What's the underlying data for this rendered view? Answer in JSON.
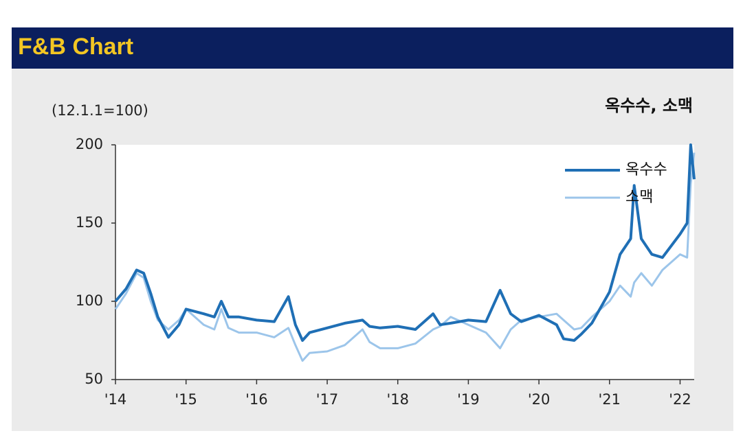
{
  "chart_data": {
    "type": "line",
    "title": "F&B Chart",
    "subtitle": "옥수수, 소맥",
    "ylabel": "(12.1.1=100)",
    "x": [
      2014.0,
      2014.15,
      2014.3,
      2014.4,
      2014.5,
      2014.6,
      2014.75,
      2014.9,
      2015.0,
      2015.25,
      2015.4,
      2015.5,
      2015.6,
      2015.75,
      2016.0,
      2016.25,
      2016.45,
      2016.55,
      2016.65,
      2016.75,
      2017.0,
      2017.25,
      2017.5,
      2017.6,
      2017.75,
      2018.0,
      2018.25,
      2018.5,
      2018.6,
      2018.75,
      2019.0,
      2019.25,
      2019.45,
      2019.6,
      2019.75,
      2020.0,
      2020.25,
      2020.35,
      2020.5,
      2020.6,
      2020.75,
      2021.0,
      2021.15,
      2021.3,
      2021.35,
      2021.45,
      2021.6,
      2021.75,
      2022.0,
      2022.1,
      2022.15,
      2022.2
    ],
    "series": [
      {
        "name": "옥수수",
        "color": "#1f6fb5",
        "width": 4,
        "values": [
          100,
          108,
          120,
          118,
          105,
          90,
          77,
          85,
          95,
          92,
          90,
          100,
          90,
          90,
          88,
          87,
          103,
          85,
          75,
          80,
          83,
          86,
          88,
          84,
          83,
          84,
          82,
          92,
          85,
          86,
          88,
          87,
          107,
          92,
          87,
          91,
          85,
          76,
          75,
          79,
          86,
          106,
          130,
          140,
          174,
          140,
          130,
          128,
          143,
          150,
          200,
          178
        ]
      },
      {
        "name": "소맥",
        "color": "#9cc5ea",
        "width": 3,
        "values": [
          95,
          105,
          118,
          115,
          100,
          88,
          82,
          88,
          95,
          85,
          82,
          95,
          83,
          80,
          80,
          77,
          83,
          72,
          62,
          67,
          68,
          72,
          82,
          74,
          70,
          70,
          73,
          82,
          84,
          90,
          85,
          80,
          70,
          82,
          88,
          90,
          92,
          88,
          82,
          83,
          90,
          100,
          110,
          103,
          112,
          118,
          110,
          120,
          130,
          128,
          175,
          195
        ]
      }
    ],
    "xlim": [
      2014,
      2022.2
    ],
    "xticks": [
      {
        "value": 2014,
        "label": "'14"
      },
      {
        "value": 2015,
        "label": "'15"
      },
      {
        "value": 2016,
        "label": "'16"
      },
      {
        "value": 2017,
        "label": "'17"
      },
      {
        "value": 2018,
        "label": "'18"
      },
      {
        "value": 2019,
        "label": "'19"
      },
      {
        "value": 2020,
        "label": "'20"
      },
      {
        "value": 2021,
        "label": "'21"
      },
      {
        "value": 2022,
        "label": "'22"
      }
    ],
    "ylim": [
      50,
      200
    ],
    "yticks": [
      50,
      100,
      150,
      200
    ],
    "legend": "upper right"
  }
}
